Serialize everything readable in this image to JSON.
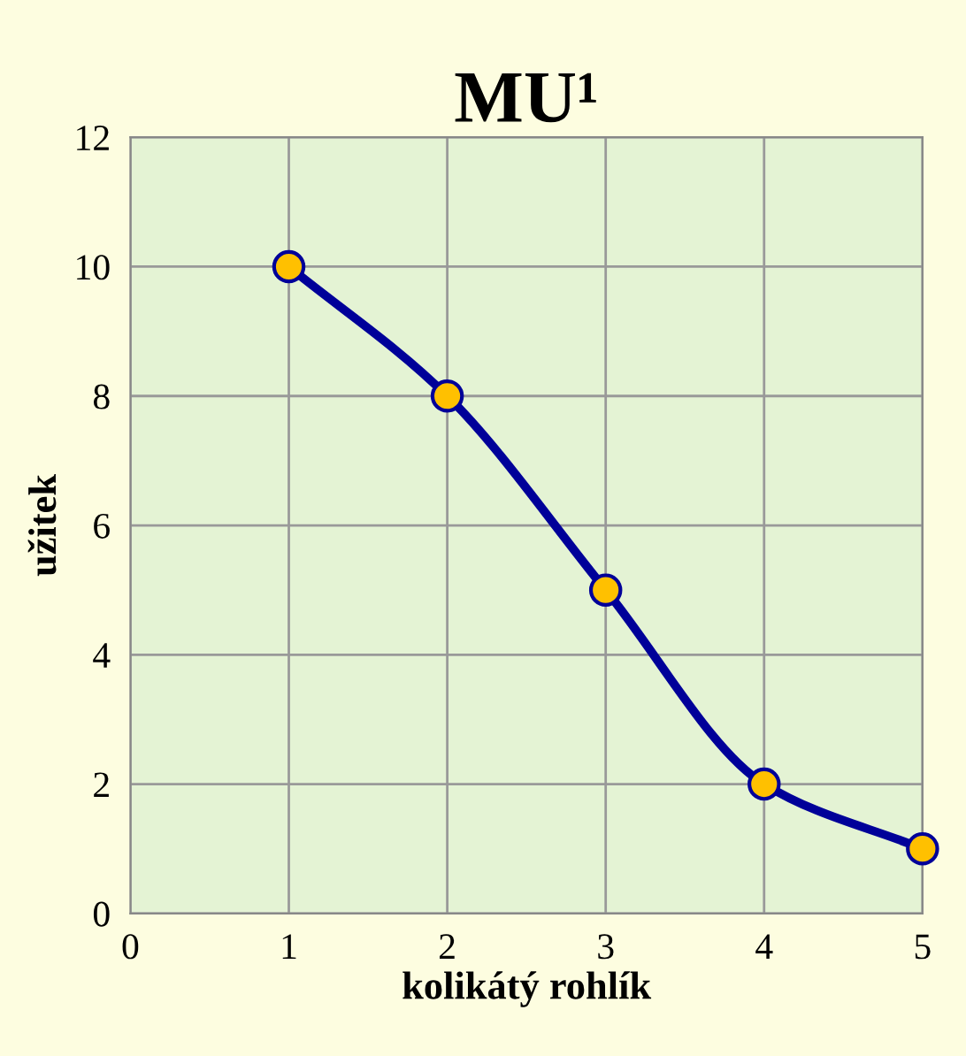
{
  "chart_data": {
    "type": "line",
    "title": "MU¹",
    "xlabel": "kolikátý rohlík",
    "ylabel": "užitek",
    "x": [
      1,
      2,
      3,
      4,
      5
    ],
    "series": [
      {
        "color": "#000099",
        "values": [
          10,
          8,
          5,
          2,
          1
        ]
      }
    ],
    "xlim": [
      0,
      5
    ],
    "xticks": [
      0,
      1,
      2,
      3,
      4,
      5
    ],
    "ylim": [
      0,
      12
    ],
    "yticks": [
      0,
      2,
      4,
      6,
      8,
      10,
      12
    ],
    "grid": true,
    "marker": "circle",
    "line_style": "solid",
    "legend": false
  }
}
